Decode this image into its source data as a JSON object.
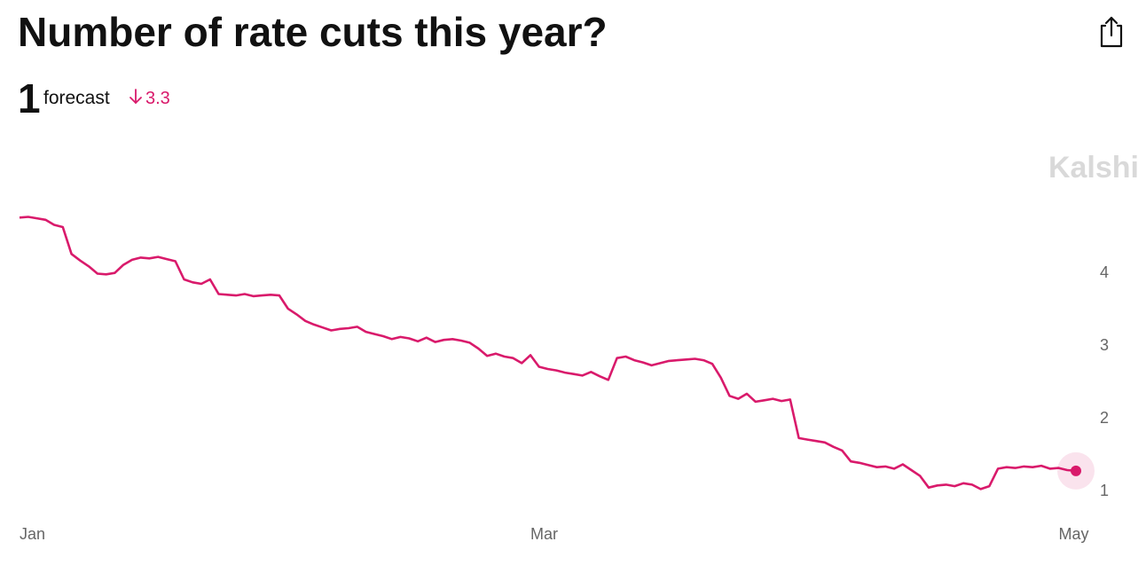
{
  "chart_data": {
    "type": "line",
    "title": "Number of rate cuts this year?",
    "forecast_value": 1,
    "forecast_label": "forecast",
    "change": 3.3,
    "watermark": "Kalshi",
    "color": "#d91a6b",
    "grid": false,
    "ylim": [
      0.88,
      4.9
    ],
    "yticks": [
      1,
      2,
      3,
      4
    ],
    "categories": [
      "Jan",
      null,
      null,
      null,
      null,
      null,
      null,
      null,
      null,
      null,
      null,
      null,
      null,
      null,
      null,
      null,
      null,
      null,
      null,
      null,
      null,
      null,
      null,
      null,
      null,
      null,
      null,
      null,
      null,
      null,
      null,
      null,
      null,
      null,
      null,
      null,
      null,
      null,
      null,
      null,
      null,
      null,
      null,
      null,
      null,
      null,
      null,
      null,
      null,
      null,
      null,
      null,
      null,
      null,
      null,
      null,
      null,
      null,
      null,
      "Mar",
      null,
      null,
      null,
      null,
      null,
      null,
      null,
      null,
      null,
      null,
      null,
      null,
      null,
      null,
      null,
      null,
      null,
      null,
      null,
      null,
      null,
      null,
      null,
      null,
      null,
      null,
      null,
      null,
      null,
      null,
      null,
      null,
      null,
      null,
      null,
      null,
      null,
      null,
      null,
      null,
      null,
      null,
      null,
      null,
      null,
      null,
      null,
      null,
      null,
      null,
      null,
      null,
      null,
      null,
      null,
      null,
      null,
      null,
      null,
      null,
      "May",
      null,
      null
    ],
    "values": [
      4.75,
      4.76,
      4.74,
      4.72,
      4.65,
      4.62,
      4.25,
      4.16,
      4.08,
      3.98,
      3.97,
      3.99,
      4.1,
      4.17,
      4.2,
      4.19,
      4.21,
      4.18,
      4.15,
      3.9,
      3.86,
      3.84,
      3.9,
      3.7,
      3.69,
      3.68,
      3.7,
      3.67,
      3.68,
      3.69,
      3.68,
      3.5,
      3.42,
      3.33,
      3.28,
      3.24,
      3.2,
      3.22,
      3.23,
      3.25,
      3.18,
      3.15,
      3.12,
      3.08,
      3.11,
      3.09,
      3.05,
      3.1,
      3.04,
      3.07,
      3.08,
      3.06,
      3.03,
      2.95,
      2.85,
      2.88,
      2.84,
      2.82,
      2.75,
      2.86,
      2.7,
      2.67,
      2.65,
      2.62,
      2.6,
      2.58,
      2.63,
      2.57,
      2.52,
      2.82,
      2.84,
      2.79,
      2.76,
      2.72,
      2.75,
      2.78,
      2.79,
      2.8,
      2.81,
      2.79,
      2.74,
      2.55,
      2.3,
      2.26,
      2.33,
      2.22,
      2.24,
      2.26,
      2.23,
      2.25,
      1.72,
      1.7,
      1.68,
      1.66,
      1.6,
      1.55,
      1.4,
      1.38,
      1.35,
      1.32,
      1.33,
      1.3,
      1.36,
      1.28,
      1.2,
      1.04,
      1.07,
      1.08,
      1.06,
      1.1,
      1.08,
      1.02,
      1.06,
      1.3,
      1.32,
      1.31,
      1.33,
      1.32,
      1.34,
      1.3,
      1.31,
      1.28,
      1.27
    ]
  }
}
